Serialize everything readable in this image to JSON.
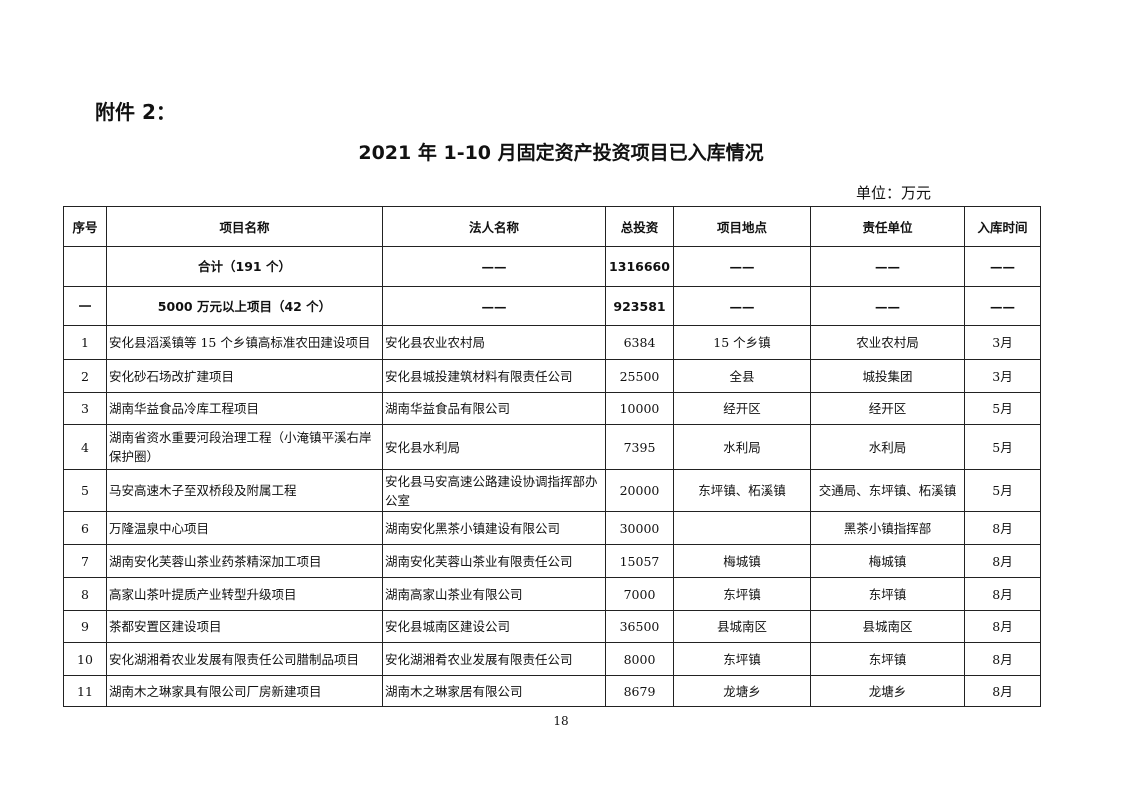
{
  "attachment": "附件 2：",
  "title": "2021 年 1-10 月固定资产投资项目已入库情况",
  "unit": "单位：万元",
  "headers": [
    "序号",
    "项目名称",
    "法人名称",
    "总投资",
    "项目地点",
    "责任单位",
    "入库时间"
  ],
  "rows": [
    [
      "",
      "合计（191 个）",
      "——",
      "1316660",
      "——",
      "——",
      "——"
    ],
    [
      "一",
      "5000 万元以上项目（42 个）",
      "——",
      "923581",
      "——",
      "——",
      "——"
    ],
    [
      "1",
      "安化县滔溪镇等 15 个乡镇高标准农田建设项目",
      "安化县农业农村局",
      "6384",
      "15 个乡镇",
      "农业农村局",
      "3月"
    ],
    [
      "2",
      "安化砂石场改扩建项目",
      "安化县城投建筑材料有限责任公司",
      "25500",
      "全县",
      "城投集团",
      "3月"
    ],
    [
      "3",
      "湖南华益食品冷库工程项目",
      "湖南华益食品有限公司",
      "10000",
      "经开区",
      "经开区",
      "5月"
    ],
    [
      "4",
      "湖南省资水重要河段治理工程（小淹镇平溪右岸保护圈）",
      "安化县水利局",
      "7395",
      "水利局",
      "水利局",
      "5月"
    ],
    [
      "5",
      "马安高速木子至双桥段及附属工程",
      "安化县马安高速公路建设协调指挥部办公室",
      "20000",
      "东坪镇、柘溪镇",
      "交通局、东坪镇、柘溪镇",
      "5月"
    ],
    [
      "6",
      "万隆温泉中心项目",
      "湖南安化黑茶小镇建设有限公司",
      "30000",
      "",
      "黑茶小镇指挥部",
      "8月"
    ],
    [
      "7",
      "湖南安化芙蓉山茶业药茶精深加工项目",
      "湖南安化芙蓉山茶业有限责任公司",
      "15057",
      "梅城镇",
      "梅城镇",
      "8月"
    ],
    [
      "8",
      "高家山茶叶提质产业转型升级项目",
      "湖南高家山茶业有限公司",
      "7000",
      "东坪镇",
      "东坪镇",
      "8月"
    ],
    [
      "9",
      "茶都安置区建设项目",
      "安化县城南区建设公司",
      "36500",
      "县城南区",
      "县城南区",
      "8月"
    ],
    [
      "10",
      "安化湖湘肴农业发展有限责任公司腊制品项目",
      "安化湖湘肴农业发展有限责任公司",
      "8000",
      "东坪镇",
      "东坪镇",
      "8月"
    ],
    [
      "11",
      "湖南木之琳家具有限公司厂房新建项目",
      "湖南木之琳家居有限公司",
      "8679",
      "龙塘乡",
      "龙塘乡",
      "8月"
    ]
  ],
  "page_number": "18"
}
